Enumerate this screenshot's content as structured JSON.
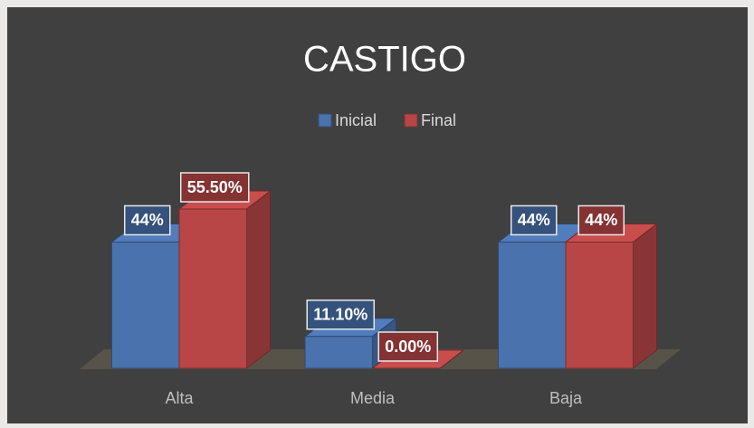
{
  "chart_data": {
    "type": "bar3d",
    "title": "CASTIGO",
    "categories": [
      "Alta",
      "Media",
      "Baja"
    ],
    "series": [
      {
        "name": "Inicial",
        "color": "#4a72ac",
        "values": [
          44,
          11.1,
          44
        ],
        "value_labels": [
          "44%",
          "11.10%",
          "44%"
        ]
      },
      {
        "name": "Final",
        "color": "#b84646",
        "values": [
          55.5,
          0,
          44
        ],
        "value_labels": [
          "55.50%",
          "0.00%",
          "44%"
        ]
      }
    ],
    "legend": "top"
  }
}
